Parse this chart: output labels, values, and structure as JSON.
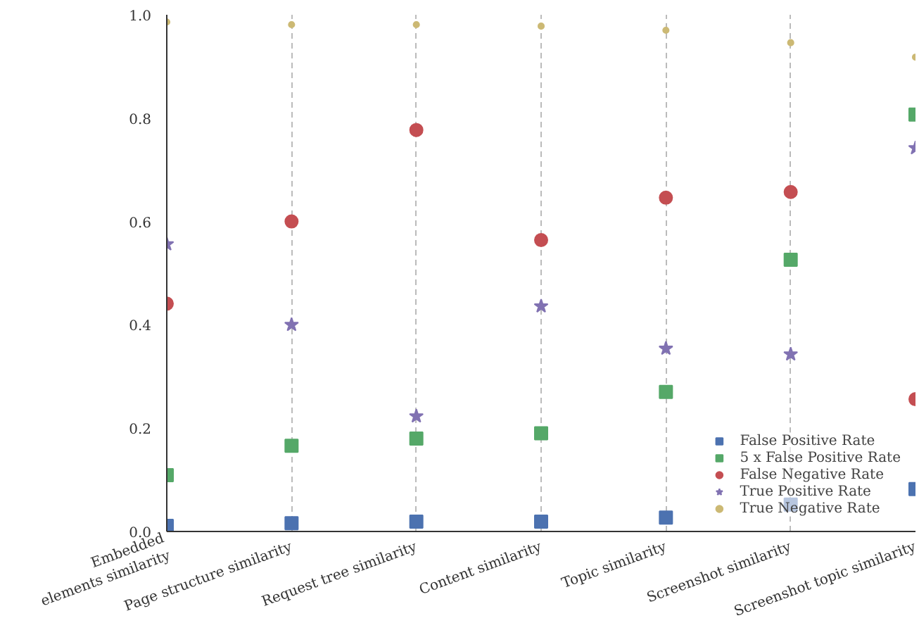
{
  "chart_data": {
    "type": "scatter",
    "categories": [
      "Embedded\nelements similarity",
      "Page structure similarity",
      "Request tree similarity",
      "Content similarity",
      "Topic similarity",
      "Screenshot similarity",
      "Screenshot topic similarity"
    ],
    "series": [
      {
        "name": "False Positive Rate",
        "color": "#4c72b0",
        "marker": "square",
        "values": [
          0.011,
          0.016,
          0.019,
          0.019,
          0.027,
          0.052,
          0.082
        ]
      },
      {
        "name": "5 x False Positive Rate",
        "color": "#55a868",
        "marker": "square",
        "values": [
          0.109,
          0.166,
          0.18,
          0.19,
          0.27,
          0.526,
          0.807
        ]
      },
      {
        "name": "False Negative Rate",
        "color": "#c44e52",
        "marker": "circle",
        "values": [
          0.441,
          0.6,
          0.777,
          0.564,
          0.646,
          0.657,
          0.256
        ]
      },
      {
        "name": "True Positive Rate",
        "color": "#8172b2",
        "marker": "star",
        "values": [
          0.556,
          0.4,
          0.223,
          0.436,
          0.354,
          0.343,
          0.742
        ]
      },
      {
        "name": "True Negative Rate",
        "color": "#ccb974",
        "marker": "circle",
        "values": [
          0.986,
          0.981,
          0.981,
          0.978,
          0.97,
          0.946,
          0.918
        ]
      }
    ],
    "ylim": [
      0,
      1
    ],
    "yticks": [
      {
        "value": 0,
        "label": "0.0"
      },
      0.2,
      0.4,
      0.6,
      0.8,
      {
        "value": 1,
        "label": "1.0"
      }
    ],
    "grid": "x",
    "legend": "bottom right"
  }
}
